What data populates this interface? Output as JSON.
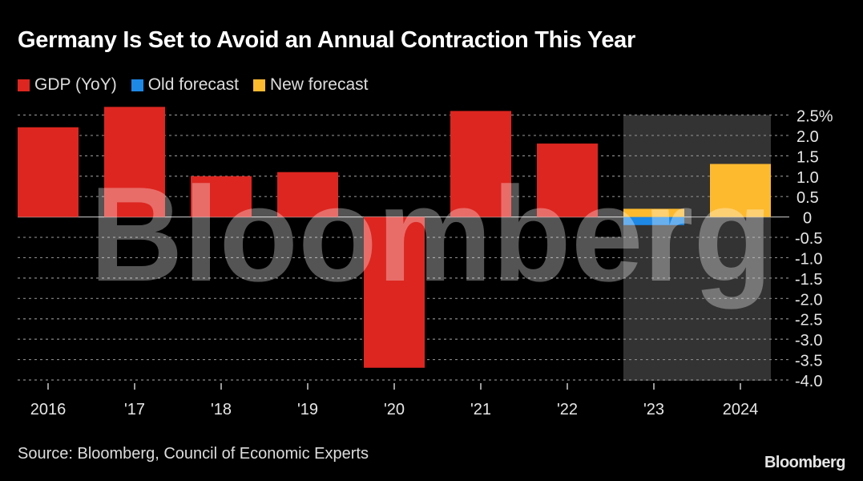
{
  "title": "Germany Is Set to Avoid an Annual Contraction This Year",
  "legend": [
    {
      "label": "GDP (YoY)",
      "color": "#dd2620"
    },
    {
      "label": "Old forecast",
      "color": "#1e88e5"
    },
    {
      "label": "New forecast",
      "color": "#fdba2f"
    }
  ],
  "source": "Source: Bloomberg, Council of Economic Experts",
  "logo": "Bloomberg",
  "watermark": "Bloomberg",
  "chart_data": {
    "type": "bar",
    "title": "Germany Is Set to Avoid an Annual Contraction This Year",
    "xlabel": "",
    "ylabel": "",
    "categories": [
      "2016",
      "'17",
      "'18",
      "'19",
      "'20",
      "'21",
      "'22",
      "'23",
      "2024"
    ],
    "series": [
      {
        "name": "GDP (YoY)",
        "color": "#dd2620",
        "values": [
          2.2,
          2.7,
          1.0,
          1.1,
          -3.7,
          2.6,
          1.8,
          null,
          null
        ]
      },
      {
        "name": "Old forecast",
        "color": "#1e88e5",
        "values": [
          null,
          null,
          null,
          null,
          null,
          null,
          null,
          -0.2,
          null
        ]
      },
      {
        "name": "New forecast",
        "color": "#fdba2f",
        "values": [
          null,
          null,
          null,
          null,
          null,
          null,
          null,
          0.2,
          1.3
        ]
      }
    ],
    "ylim": [
      -4.0,
      2.5
    ],
    "yticks": [
      2.5,
      2.0,
      1.5,
      1.0,
      0.5,
      0,
      -0.5,
      -1.0,
      -1.5,
      -2.0,
      -2.5,
      -3.0,
      -3.5,
      -4.0
    ],
    "ytick_labels": [
      "2.5%",
      "2.0",
      "1.5",
      "1.0",
      "0.5",
      "0",
      "-0.5",
      "-1.0",
      "-1.5",
      "-2.0",
      "-2.5",
      "-3.0",
      "-3.5",
      "-4.0"
    ],
    "forecast_shading": [
      "'23",
      "2024"
    ],
    "grid": true,
    "legend_position": "top-left",
    "y_axis_position": "right"
  }
}
